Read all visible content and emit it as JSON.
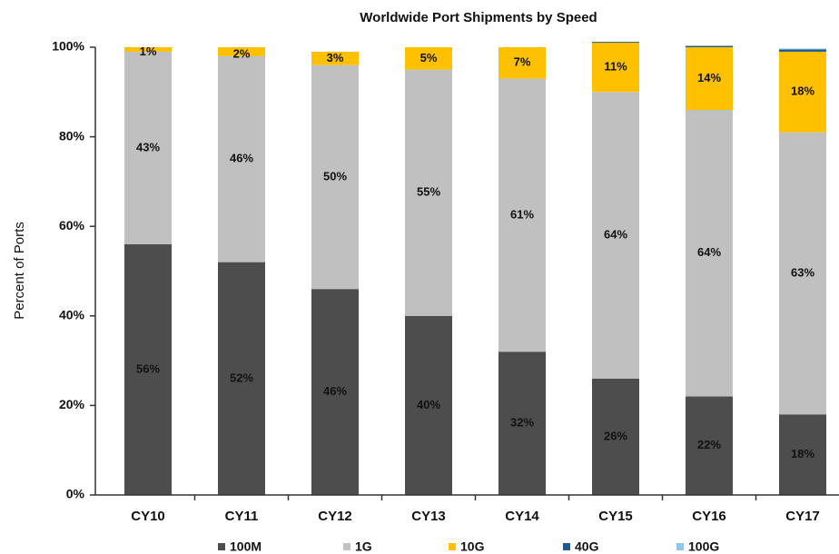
{
  "chart_data": {
    "type": "stacked_bar",
    "title": "Worldwide Port Shipments by Speed",
    "y_label": "Percent of Ports",
    "categories": [
      "CY10",
      "CY11",
      "CY12",
      "CY13",
      "CY14",
      "CY15",
      "CY16",
      "CY17"
    ],
    "series": [
      {
        "name": "100M",
        "color": "#4d4d4d",
        "values": [
          56,
          52,
          46,
          40,
          32,
          26,
          22,
          18
        ],
        "value_labels": [
          "56%",
          "52%",
          "46%",
          "40%",
          "32%",
          "26%",
          "22%",
          "18%"
        ]
      },
      {
        "name": "1G",
        "color": "#c0c0c0",
        "values": [
          43,
          46,
          50,
          55,
          61,
          64,
          64,
          63
        ],
        "value_labels": [
          "43%",
          "46%",
          "50%",
          "55%",
          "61%",
          "64%",
          "64%",
          "63%"
        ]
      },
      {
        "name": "10G",
        "color": "#ffc000",
        "values": [
          1,
          2,
          3,
          5,
          7,
          11,
          14,
          18
        ],
        "value_labels": [
          "1%",
          "2%",
          "3%",
          "5%",
          "7%",
          "11%",
          "14%",
          "18%"
        ]
      },
      {
        "name": "40G",
        "color": "#1f5c8b",
        "values": [
          0,
          0,
          0,
          0,
          0,
          0.2,
          0.3,
          0.5
        ]
      },
      {
        "name": "100G",
        "color": "#8fc8ea",
        "values": [
          0,
          0,
          0,
          0,
          0,
          0,
          0,
          0.2
        ]
      }
    ],
    "ylim": [
      0,
      100
    ],
    "yticks": [
      {
        "value": 0,
        "label": "0%"
      },
      {
        "value": 20,
        "label": "20%"
      },
      {
        "value": 40,
        "label": "40%"
      },
      {
        "value": 60,
        "label": "60%"
      },
      {
        "value": 80,
        "label": "80%"
      },
      {
        "value": 100,
        "label": "100%"
      }
    ],
    "legend": "bottom",
    "grid": false
  }
}
